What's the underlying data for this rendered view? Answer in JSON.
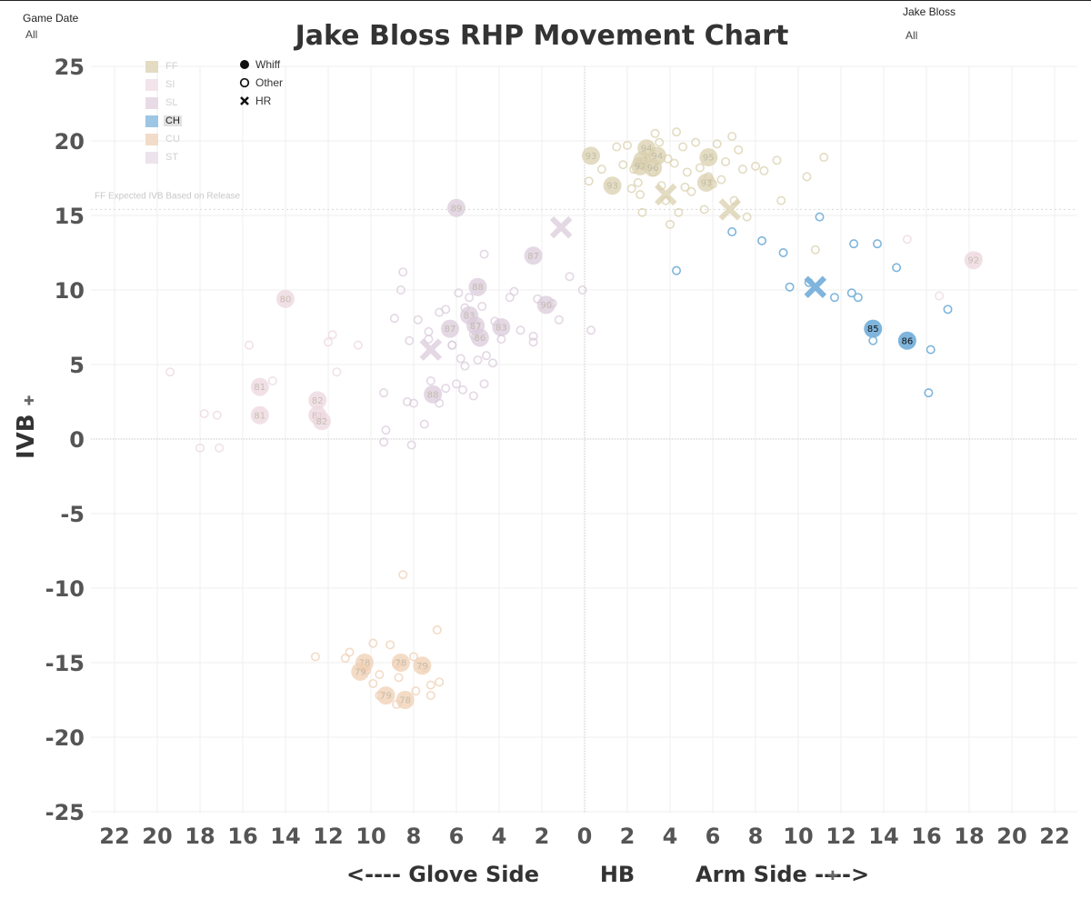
{
  "filters": {
    "game_date": {
      "label": "Game Date",
      "value": "All"
    },
    "pitcher": {
      "label": "Jake Bloss",
      "value": "All"
    }
  },
  "shape_legend": [
    {
      "label": "Whiff",
      "icon": "filled-circle-icon"
    },
    {
      "label": "Other",
      "icon": "open-circle-icon"
    },
    {
      "label": "HR",
      "icon": "x-mark-icon"
    }
  ],
  "pitch_legend": [
    {
      "code": "FF",
      "color": "#e3dcc3",
      "selected": false
    },
    {
      "code": "SI",
      "color": "#f2e4ea",
      "selected": false
    },
    {
      "code": "SL",
      "color": "#e8dbe6",
      "selected": false
    },
    {
      "code": "CH",
      "color": "#9dc6e4",
      "selected": true
    },
    {
      "code": "CU",
      "color": "#f2dcc7",
      "selected": false
    },
    {
      "code": "ST",
      "color": "#ece3ec",
      "selected": false
    }
  ],
  "chart_data": {
    "type": "scatter",
    "title": "Jake Bloss RHP Movement Chart",
    "xlabel": "<---- Glove Side        HB        Arm Side ---->",
    "ylabel": "IVB",
    "xlim": [
      -23,
      23
    ],
    "ylim": [
      -26.5,
      26
    ],
    "x_ticks": [
      -22,
      -20,
      -18,
      -16,
      -14,
      -12,
      -10,
      -8,
      -6,
      -4,
      -2,
      0,
      2,
      4,
      6,
      8,
      10,
      12,
      14,
      16,
      18,
      20,
      22
    ],
    "x_tick_labels": [
      "22",
      "20",
      "18",
      "16",
      "14",
      "12",
      "10",
      "8",
      "6",
      "4",
      "2",
      "0",
      "2",
      "4",
      "6",
      "8",
      "10",
      "12",
      "14",
      "16",
      "18",
      "20",
      "22"
    ],
    "y_ticks": [
      25,
      20,
      15,
      10,
      5,
      0,
      -5,
      -10,
      -15,
      -20,
      -25
    ],
    "reference_line": {
      "y": 15.4,
      "label": "FF Expected IVB Based on Release"
    },
    "colors": {
      "FF": "#d9d0ad",
      "SI": "#ecd7df",
      "SL": "#dacbd9",
      "CH": "#7fb5dc",
      "CU": "#efcfb3",
      "ST": "#e0d3e0"
    },
    "selected_type": "CH",
    "points": [
      {
        "t": "FF",
        "r": "o",
        "x": 0.2,
        "y": 17.3
      },
      {
        "t": "FF",
        "r": "o",
        "x": 0.8,
        "y": 18.1
      },
      {
        "t": "FF",
        "r": "o",
        "x": 1.8,
        "y": 18.4
      },
      {
        "t": "FF",
        "r": "o",
        "x": 2.0,
        "y": 19.7
      },
      {
        "t": "FF",
        "r": "o",
        "x": 2.3,
        "y": 18.1
      },
      {
        "t": "FF",
        "r": "o",
        "x": 2.5,
        "y": 17.2
      },
      {
        "t": "FF",
        "r": "o",
        "x": 2.6,
        "y": 16.4
      },
      {
        "t": "FF",
        "r": "o",
        "x": 2.7,
        "y": 15.2
      },
      {
        "t": "FF",
        "r": "o",
        "x": 3.0,
        "y": 19.2
      },
      {
        "t": "FF",
        "r": "o",
        "x": 3.2,
        "y": 17.9
      },
      {
        "t": "FF",
        "r": "o",
        "x": 3.3,
        "y": 20.5
      },
      {
        "t": "FF",
        "r": "o",
        "x": 3.5,
        "y": 19.9
      },
      {
        "t": "FF",
        "r": "o",
        "x": 3.6,
        "y": 17.0
      },
      {
        "t": "FF",
        "r": "o",
        "x": 3.8,
        "y": 16.0
      },
      {
        "t": "FF",
        "r": "o",
        "x": 4.0,
        "y": 14.4
      },
      {
        "t": "FF",
        "r": "o",
        "x": 4.2,
        "y": 18.5
      },
      {
        "t": "FF",
        "r": "o",
        "x": 4.3,
        "y": 20.6
      },
      {
        "t": "FF",
        "r": "o",
        "x": 4.4,
        "y": 15.2
      },
      {
        "t": "FF",
        "r": "o",
        "x": 4.6,
        "y": 19.6
      },
      {
        "t": "FF",
        "r": "o",
        "x": 4.8,
        "y": 17.9
      },
      {
        "t": "FF",
        "r": "o",
        "x": 5.0,
        "y": 16.6
      },
      {
        "t": "FF",
        "r": "o",
        "x": 5.2,
        "y": 19.9
      },
      {
        "t": "FF",
        "r": "o",
        "x": 5.4,
        "y": 18.2
      },
      {
        "t": "FF",
        "r": "o",
        "x": 5.6,
        "y": 15.4
      },
      {
        "t": "FF",
        "r": "o",
        "x": 6.0,
        "y": 17.1
      },
      {
        "t": "FF",
        "r": "o",
        "x": 6.2,
        "y": 19.8
      },
      {
        "t": "FF",
        "r": "o",
        "x": 6.6,
        "y": 18.6
      },
      {
        "t": "FF",
        "r": "o",
        "x": 6.9,
        "y": 20.3
      },
      {
        "t": "FF",
        "r": "o",
        "x": 7.0,
        "y": 16.0
      },
      {
        "t": "FF",
        "r": "o",
        "x": 7.2,
        "y": 19.4
      },
      {
        "t": "FF",
        "r": "o",
        "x": 7.4,
        "y": 18.1
      },
      {
        "t": "FF",
        "r": "o",
        "x": 7.6,
        "y": 14.9
      },
      {
        "t": "FF",
        "r": "o",
        "x": 8.0,
        "y": 18.3
      },
      {
        "t": "FF",
        "r": "o",
        "x": 8.4,
        "y": 18.0
      },
      {
        "t": "FF",
        "r": "o",
        "x": 9.0,
        "y": 18.7
      },
      {
        "t": "FF",
        "r": "o",
        "x": 9.2,
        "y": 16.0
      },
      {
        "t": "FF",
        "r": "o",
        "x": 10.4,
        "y": 17.6
      },
      {
        "t": "FF",
        "r": "o",
        "x": 10.8,
        "y": 12.7
      },
      {
        "t": "FF",
        "r": "o",
        "x": 11.2,
        "y": 18.9
      },
      {
        "t": "FF",
        "r": "o",
        "x": 1.5,
        "y": 19.6
      },
      {
        "t": "FF",
        "r": "o",
        "x": 3.9,
        "y": 18.8
      },
      {
        "t": "FF",
        "r": "o",
        "x": 5.8,
        "y": 17.6
      },
      {
        "t": "FF",
        "r": "o",
        "x": 6.4,
        "y": 17.4
      },
      {
        "t": "FF",
        "r": "o",
        "x": 2.2,
        "y": 16.8
      },
      {
        "t": "FF",
        "r": "o",
        "x": 4.7,
        "y": 16.9
      },
      {
        "t": "FF",
        "r": "w",
        "x": 0.3,
        "y": 19.0,
        "v": "93"
      },
      {
        "t": "FF",
        "r": "w",
        "x": 1.3,
        "y": 17.0,
        "v": "93"
      },
      {
        "t": "FF",
        "r": "w",
        "x": 2.9,
        "y": 19.5,
        "v": "94"
      },
      {
        "t": "FF",
        "r": "w",
        "x": 3.4,
        "y": 19.0,
        "v": "94"
      },
      {
        "t": "FF",
        "r": "w",
        "x": 2.7,
        "y": 18.7,
        "v": "93"
      },
      {
        "t": "FF",
        "r": "w",
        "x": 2.6,
        "y": 18.3,
        "v": "92"
      },
      {
        "t": "FF",
        "r": "w",
        "x": 3.2,
        "y": 18.2,
        "v": "96"
      },
      {
        "t": "FF",
        "r": "w",
        "x": 5.8,
        "y": 18.9,
        "v": "95"
      },
      {
        "t": "FF",
        "r": "w",
        "x": 5.7,
        "y": 17.2,
        "v": "93"
      },
      {
        "t": "FF",
        "r": "x",
        "x": 3.8,
        "y": 16.4
      },
      {
        "t": "FF",
        "r": "x",
        "x": 6.8,
        "y": 15.4
      },
      {
        "t": "SI",
        "r": "o",
        "x": -19.4,
        "y": 4.5
      },
      {
        "t": "SI",
        "r": "o",
        "x": -17.8,
        "y": 1.7
      },
      {
        "t": "SI",
        "r": "o",
        "x": -17.2,
        "y": 1.6
      },
      {
        "t": "SI",
        "r": "o",
        "x": -15.7,
        "y": 6.3
      },
      {
        "t": "SI",
        "r": "o",
        "x": -14.6,
        "y": 3.9
      },
      {
        "t": "SI",
        "r": "o",
        "x": -12.0,
        "y": 6.5
      },
      {
        "t": "SI",
        "r": "o",
        "x": -11.6,
        "y": 4.5
      },
      {
        "t": "SI",
        "r": "o",
        "x": -10.6,
        "y": 6.3
      },
      {
        "t": "SI",
        "r": "o",
        "x": -11.8,
        "y": 7.0
      },
      {
        "t": "SI",
        "r": "o",
        "x": -18.0,
        "y": -0.6
      },
      {
        "t": "SI",
        "r": "o",
        "x": -17.1,
        "y": -0.6
      },
      {
        "t": "SI",
        "r": "o",
        "x": 15.1,
        "y": 13.4
      },
      {
        "t": "SI",
        "r": "o",
        "x": 16.6,
        "y": 9.6
      },
      {
        "t": "SI",
        "r": "o",
        "x": 18.4,
        "y": 12.2
      },
      {
        "t": "SI",
        "r": "w",
        "x": -15.2,
        "y": 3.5,
        "v": "81"
      },
      {
        "t": "SI",
        "r": "w",
        "x": -15.2,
        "y": 1.6,
        "v": "81"
      },
      {
        "t": "SI",
        "r": "w",
        "x": -14.0,
        "y": 9.4,
        "v": "80"
      },
      {
        "t": "SI",
        "r": "w",
        "x": -12.5,
        "y": 2.6,
        "v": "82"
      },
      {
        "t": "SI",
        "r": "w",
        "x": -12.5,
        "y": 1.6,
        "v": "81"
      },
      {
        "t": "SI",
        "r": "w",
        "x": -12.3,
        "y": 1.2,
        "v": "82"
      },
      {
        "t": "SI",
        "r": "w",
        "x": 18.2,
        "y": 12.0,
        "v": "92"
      },
      {
        "t": "SL",
        "r": "o",
        "x": -8.5,
        "y": 11.2
      },
      {
        "t": "SL",
        "r": "o",
        "x": -8.6,
        "y": 10.0
      },
      {
        "t": "SL",
        "r": "o",
        "x": -8.9,
        "y": 8.1
      },
      {
        "t": "SL",
        "r": "o",
        "x": -7.8,
        "y": 8.0
      },
      {
        "t": "SL",
        "r": "o",
        "x": -8.2,
        "y": 6.6
      },
      {
        "t": "SL",
        "r": "o",
        "x": -7.3,
        "y": 7.2
      },
      {
        "t": "SL",
        "r": "o",
        "x": -6.8,
        "y": 8.5
      },
      {
        "t": "SL",
        "r": "o",
        "x": -6.5,
        "y": 8.7
      },
      {
        "t": "SL",
        "r": "o",
        "x": -5.9,
        "y": 9.8
      },
      {
        "t": "SL",
        "r": "o",
        "x": -5.6,
        "y": 8.8
      },
      {
        "t": "SL",
        "r": "o",
        "x": -5.4,
        "y": 9.5
      },
      {
        "t": "SL",
        "r": "o",
        "x": -5.1,
        "y": 7.6
      },
      {
        "t": "SL",
        "r": "o",
        "x": -4.8,
        "y": 8.9
      },
      {
        "t": "SL",
        "r": "o",
        "x": -4.7,
        "y": 12.4
      },
      {
        "t": "SL",
        "r": "o",
        "x": -4.2,
        "y": 7.9
      },
      {
        "t": "SL",
        "r": "o",
        "x": -3.5,
        "y": 9.5
      },
      {
        "t": "SL",
        "r": "o",
        "x": -3.3,
        "y": 9.9
      },
      {
        "t": "SL",
        "r": "o",
        "x": -3.0,
        "y": 7.3
      },
      {
        "t": "SL",
        "r": "o",
        "x": -2.4,
        "y": 6.9
      },
      {
        "t": "SL",
        "r": "o",
        "x": -2.2,
        "y": 9.4
      },
      {
        "t": "SL",
        "r": "o",
        "x": -1.5,
        "y": 9.1
      },
      {
        "t": "SL",
        "r": "o",
        "x": -1.2,
        "y": 8.0
      },
      {
        "t": "SL",
        "r": "o",
        "x": -0.7,
        "y": 10.9
      },
      {
        "t": "SL",
        "r": "o",
        "x": -0.1,
        "y": 10.0
      },
      {
        "t": "SL",
        "r": "o",
        "x": 0.3,
        "y": 7.3
      },
      {
        "t": "SL",
        "r": "o",
        "x": -7.3,
        "y": 6.7
      },
      {
        "t": "SL",
        "r": "o",
        "x": -6.2,
        "y": 6.3
      },
      {
        "t": "SL",
        "r": "o",
        "x": -5.8,
        "y": 5.4
      },
      {
        "t": "SL",
        "r": "o",
        "x": -5.6,
        "y": 4.9
      },
      {
        "t": "SL",
        "r": "o",
        "x": -5.0,
        "y": 5.3
      },
      {
        "t": "SL",
        "r": "o",
        "x": -4.6,
        "y": 5.6
      },
      {
        "t": "SL",
        "r": "o",
        "x": -4.3,
        "y": 5.1
      },
      {
        "t": "SL",
        "r": "o",
        "x": -3.9,
        "y": 6.7
      },
      {
        "t": "SL",
        "r": "o",
        "x": -2.4,
        "y": 6.5
      },
      {
        "t": "SL",
        "r": "o",
        "x": -7.2,
        "y": 3.9
      },
      {
        "t": "SL",
        "r": "o",
        "x": -6.5,
        "y": 3.4
      },
      {
        "t": "SL",
        "r": "o",
        "x": -6.0,
        "y": 3.7
      },
      {
        "t": "SL",
        "r": "o",
        "x": -5.7,
        "y": 3.3
      },
      {
        "t": "SL",
        "r": "o",
        "x": -4.7,
        "y": 3.7
      },
      {
        "t": "SL",
        "r": "o",
        "x": -5.2,
        "y": 2.9
      },
      {
        "t": "SL",
        "r": "o",
        "x": -8.3,
        "y": 2.5
      },
      {
        "t": "SL",
        "r": "o",
        "x": -8.0,
        "y": 2.4
      },
      {
        "t": "SL",
        "r": "o",
        "x": -6.8,
        "y": 2.4
      },
      {
        "t": "SL",
        "r": "o",
        "x": -9.4,
        "y": 3.1
      },
      {
        "t": "SL",
        "r": "o",
        "x": -7.5,
        "y": 1.0
      },
      {
        "t": "SL",
        "r": "o",
        "x": -9.3,
        "y": 0.6
      },
      {
        "t": "SL",
        "r": "o",
        "x": -9.4,
        "y": -0.2
      },
      {
        "t": "SL",
        "r": "o",
        "x": -8.1,
        "y": -0.4
      },
      {
        "t": "SL",
        "r": "o",
        "x": -6.2,
        "y": 6.3
      },
      {
        "t": "SL",
        "r": "o",
        "x": -5.2,
        "y": 7.0
      },
      {
        "t": "SL",
        "r": "w",
        "x": -6.0,
        "y": 15.5,
        "v": "89"
      },
      {
        "t": "SL",
        "r": "w",
        "x": -2.4,
        "y": 12.3,
        "v": "87"
      },
      {
        "t": "SL",
        "r": "w",
        "x": -5.0,
        "y": 10.2,
        "v": "88"
      },
      {
        "t": "SL",
        "r": "w",
        "x": -1.8,
        "y": 9.0,
        "v": "90"
      },
      {
        "t": "SL",
        "r": "w",
        "x": -5.4,
        "y": 8.3,
        "v": "83"
      },
      {
        "t": "SL",
        "r": "w",
        "x": -5.1,
        "y": 7.6,
        "v": "87"
      },
      {
        "t": "SL",
        "r": "w",
        "x": -6.3,
        "y": 7.4,
        "v": "87"
      },
      {
        "t": "SL",
        "r": "w",
        "x": -3.9,
        "y": 7.5,
        "v": "83"
      },
      {
        "t": "SL",
        "r": "w",
        "x": -4.9,
        "y": 6.8,
        "v": "86"
      },
      {
        "t": "SL",
        "r": "w",
        "x": -7.1,
        "y": 3.0,
        "v": "88"
      },
      {
        "t": "SL",
        "r": "x",
        "x": -7.2,
        "y": 6.0
      },
      {
        "t": "SL",
        "r": "x",
        "x": -1.1,
        "y": 14.2
      },
      {
        "t": "CH",
        "r": "o",
        "x": 4.3,
        "y": 11.3
      },
      {
        "t": "CH",
        "r": "o",
        "x": 6.9,
        "y": 13.9
      },
      {
        "t": "CH",
        "r": "o",
        "x": 8.3,
        "y": 13.3
      },
      {
        "t": "CH",
        "r": "o",
        "x": 9.6,
        "y": 10.2
      },
      {
        "t": "CH",
        "r": "o",
        "x": 9.3,
        "y": 12.5
      },
      {
        "t": "CH",
        "r": "o",
        "x": 10.5,
        "y": 10.5
      },
      {
        "t": "CH",
        "r": "o",
        "x": 11.0,
        "y": 14.9
      },
      {
        "t": "CH",
        "r": "o",
        "x": 11.7,
        "y": 9.5
      },
      {
        "t": "CH",
        "r": "o",
        "x": 12.5,
        "y": 9.8
      },
      {
        "t": "CH",
        "r": "o",
        "x": 12.6,
        "y": 13.1
      },
      {
        "t": "CH",
        "r": "o",
        "x": 12.8,
        "y": 9.5
      },
      {
        "t": "CH",
        "r": "o",
        "x": 13.7,
        "y": 13.1
      },
      {
        "t": "CH",
        "r": "o",
        "x": 13.5,
        "y": 6.6
      },
      {
        "t": "CH",
        "r": "o",
        "x": 14.6,
        "y": 11.5
      },
      {
        "t": "CH",
        "r": "o",
        "x": 16.1,
        "y": 3.1
      },
      {
        "t": "CH",
        "r": "o",
        "x": 16.2,
        "y": 6.0
      },
      {
        "t": "CH",
        "r": "o",
        "x": 17.0,
        "y": 8.7
      },
      {
        "t": "CH",
        "r": "w",
        "x": 13.5,
        "y": 7.4,
        "v": "85"
      },
      {
        "t": "CH",
        "r": "w",
        "x": 15.1,
        "y": 6.6,
        "v": "86"
      },
      {
        "t": "CH",
        "r": "x",
        "x": 10.8,
        "y": 10.2
      },
      {
        "t": "CU",
        "r": "o",
        "x": -12.6,
        "y": -14.6
      },
      {
        "t": "CU",
        "r": "o",
        "x": -11.2,
        "y": -14.7
      },
      {
        "t": "CU",
        "r": "o",
        "x": -11.0,
        "y": -14.3
      },
      {
        "t": "CU",
        "r": "o",
        "x": -10.2,
        "y": -15.5
      },
      {
        "t": "CU",
        "r": "o",
        "x": -9.9,
        "y": -13.7
      },
      {
        "t": "CU",
        "r": "o",
        "x": -9.1,
        "y": -13.8
      },
      {
        "t": "CU",
        "r": "o",
        "x": -8.7,
        "y": -16.0
      },
      {
        "t": "CU",
        "r": "o",
        "x": -8.5,
        "y": -9.1
      },
      {
        "t": "CU",
        "r": "o",
        "x": -8.0,
        "y": -14.6
      },
      {
        "t": "CU",
        "r": "o",
        "x": -7.5,
        "y": -15.3
      },
      {
        "t": "CU",
        "r": "o",
        "x": -6.9,
        "y": -12.8
      },
      {
        "t": "CU",
        "r": "o",
        "x": -7.2,
        "y": -16.5
      },
      {
        "t": "CU",
        "r": "o",
        "x": -6.8,
        "y": -16.3
      },
      {
        "t": "CU",
        "r": "o",
        "x": -7.9,
        "y": -16.9
      },
      {
        "t": "CU",
        "r": "o",
        "x": -7.2,
        "y": -17.2
      },
      {
        "t": "CU",
        "r": "o",
        "x": -9.6,
        "y": -15.8
      },
      {
        "t": "CU",
        "r": "o",
        "x": -9.9,
        "y": -16.4
      },
      {
        "t": "CU",
        "r": "o",
        "x": -8.8,
        "y": -15.1
      },
      {
        "t": "CU",
        "r": "o",
        "x": -8.8,
        "y": -17.8
      },
      {
        "t": "CU",
        "r": "o",
        "x": -9.6,
        "y": -17.2
      },
      {
        "t": "CU",
        "r": "w",
        "x": -10.3,
        "y": -15.0,
        "v": "78"
      },
      {
        "t": "CU",
        "r": "w",
        "x": -10.5,
        "y": -15.6,
        "v": "79"
      },
      {
        "t": "CU",
        "r": "w",
        "x": -8.6,
        "y": -15.0,
        "v": "78"
      },
      {
        "t": "CU",
        "r": "w",
        "x": -7.6,
        "y": -15.2,
        "v": "79"
      },
      {
        "t": "CU",
        "r": "w",
        "x": -9.3,
        "y": -17.2,
        "v": "79"
      },
      {
        "t": "CU",
        "r": "w",
        "x": -8.4,
        "y": -17.5,
        "v": "78"
      }
    ]
  }
}
